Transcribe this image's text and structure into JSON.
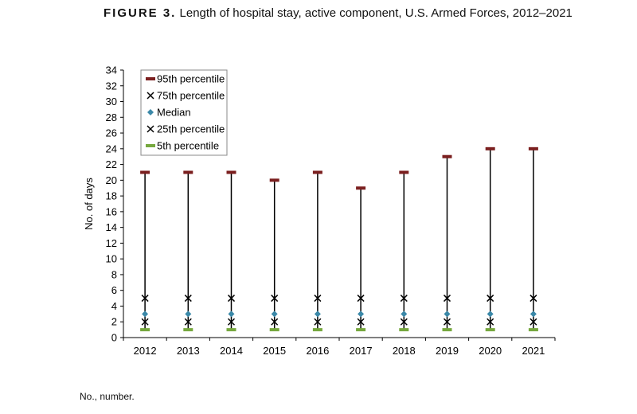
{
  "figure": {
    "label": "FIGURE 3.",
    "title": "Length of hospital stay, active component, U.S. Armed Forces, 2012–2021",
    "footnote": "No., number."
  },
  "chart_data": {
    "type": "scatter",
    "title": "Length of hospital stay, active component, U.S. Armed Forces, 2012–2021",
    "xlabel": "",
    "ylabel": "No. of days",
    "ylim": [
      0,
      34
    ],
    "yticks": [
      0,
      2,
      4,
      6,
      8,
      10,
      12,
      14,
      16,
      18,
      20,
      22,
      24,
      26,
      28,
      30,
      32,
      34
    ],
    "categories": [
      "2012",
      "2013",
      "2014",
      "2015",
      "2016",
      "2017",
      "2018",
      "2019",
      "2020",
      "2021"
    ],
    "grid": false,
    "legend_position": "top-left",
    "series": [
      {
        "name": "95th percentile",
        "marker": "dash",
        "color": "#7b1f1f",
        "values": [
          21,
          21,
          21,
          20,
          21,
          19,
          21,
          23,
          24,
          24
        ]
      },
      {
        "name": "75th percentile",
        "marker": "x",
        "color": "#000000",
        "values": [
          5,
          5,
          5,
          5,
          5,
          5,
          5,
          5,
          5,
          5
        ]
      },
      {
        "name": "Median",
        "marker": "diamond",
        "color": "#3a88a8",
        "values": [
          3,
          3,
          3,
          3,
          3,
          3,
          3,
          3,
          3,
          3
        ]
      },
      {
        "name": "25th percentile",
        "marker": "x",
        "color": "#000000",
        "values": [
          2,
          2,
          2,
          2,
          2,
          2,
          2,
          2,
          2,
          2
        ]
      },
      {
        "name": "5th percentile",
        "marker": "dash",
        "color": "#76a83e",
        "values": [
          1,
          1,
          1,
          1,
          1,
          1,
          1,
          1,
          1,
          1
        ]
      }
    ]
  }
}
